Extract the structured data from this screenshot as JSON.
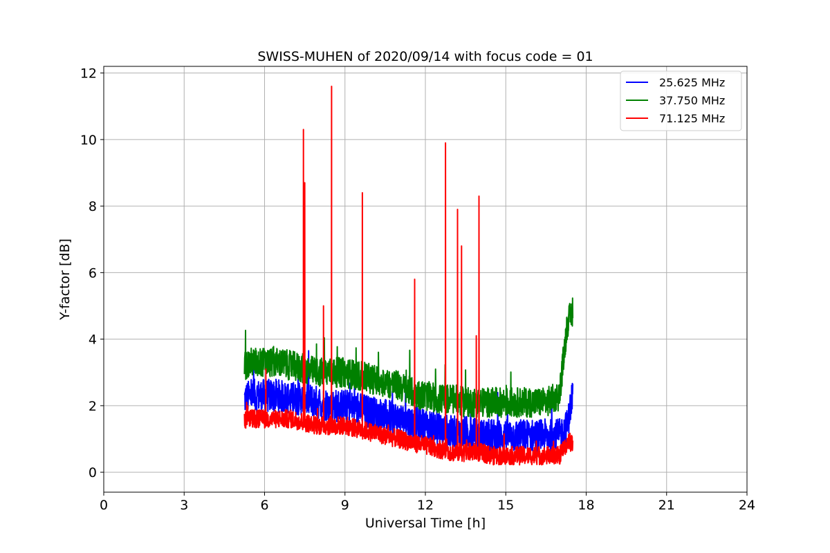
{
  "chart_data": {
    "type": "line",
    "title": "SWISS-MUHEN of 2020/09/14 with focus code = 01",
    "xlabel": "Universal Time [h]",
    "ylabel": "Y-factor [dB]",
    "xlim": [
      0,
      24
    ],
    "ylim": [
      -0.6,
      12.2
    ],
    "xticks": [
      0,
      3,
      6,
      9,
      12,
      15,
      18,
      21,
      24
    ],
    "yticks": [
      0,
      2,
      4,
      6,
      8,
      10,
      12
    ],
    "grid": true,
    "legend_position": "top-right",
    "series": [
      {
        "name": "  25.625 MHz",
        "color": "#0000ff",
        "x": [
          5.25,
          5.5,
          6.0,
          6.5,
          7.0,
          7.5,
          8.0,
          8.5,
          9.0,
          9.5,
          10.0,
          10.5,
          11.0,
          11.5,
          12.0,
          12.5,
          13.0,
          13.5,
          14.0,
          14.5,
          15.0,
          15.5,
          16.0,
          16.5,
          17.0,
          17.3,
          17.5
        ],
        "y": [
          2.2,
          2.3,
          2.3,
          2.3,
          2.2,
          2.2,
          2.1,
          2.0,
          2.0,
          1.9,
          1.8,
          1.7,
          1.6,
          1.5,
          1.4,
          1.3,
          1.2,
          1.2,
          1.1,
          1.1,
          1.1,
          1.1,
          1.1,
          1.1,
          1.1,
          1.4,
          2.4
        ]
      },
      {
        "name": "  37.750 MHz",
        "color": "#008000",
        "x": [
          5.25,
          5.5,
          6.0,
          6.5,
          7.0,
          7.5,
          8.0,
          8.5,
          9.0,
          9.5,
          10.0,
          10.5,
          11.0,
          11.5,
          12.0,
          12.5,
          13.0,
          13.5,
          14.0,
          14.5,
          15.0,
          15.5,
          16.0,
          16.5,
          17.0,
          17.3,
          17.5
        ],
        "y": [
          3.2,
          3.3,
          3.3,
          3.3,
          3.2,
          3.1,
          3.0,
          3.0,
          3.0,
          2.9,
          2.8,
          2.7,
          2.6,
          2.4,
          2.3,
          2.2,
          2.2,
          2.1,
          2.1,
          2.1,
          2.1,
          2.1,
          2.1,
          2.1,
          2.3,
          4.5,
          4.8
        ]
      },
      {
        "name": "  71.125 MHz",
        "color": "#ff0000",
        "x": [
          5.25,
          5.5,
          6.0,
          6.5,
          7.0,
          7.5,
          8.0,
          8.5,
          9.0,
          9.5,
          10.0,
          10.5,
          11.0,
          11.5,
          12.0,
          12.5,
          13.0,
          13.5,
          14.0,
          14.5,
          15.0,
          15.5,
          16.0,
          16.5,
          17.0,
          17.3,
          17.5
        ],
        "y": [
          1.6,
          1.6,
          1.6,
          1.6,
          1.6,
          1.5,
          1.4,
          1.4,
          1.4,
          1.3,
          1.2,
          1.1,
          1.0,
          0.9,
          0.8,
          0.7,
          0.6,
          0.6,
          0.6,
          0.5,
          0.5,
          0.5,
          0.5,
          0.5,
          0.5,
          0.9,
          0.9
        ],
        "spikes": [
          {
            "x": 6.05,
            "y": 3.1
          },
          {
            "x": 7.45,
            "y": 10.3
          },
          {
            "x": 7.5,
            "y": 8.7
          },
          {
            "x": 8.2,
            "y": 5.0
          },
          {
            "x": 8.5,
            "y": 11.6
          },
          {
            "x": 9.65,
            "y": 8.4
          },
          {
            "x": 11.6,
            "y": 5.8
          },
          {
            "x": 12.75,
            "y": 9.9
          },
          {
            "x": 13.2,
            "y": 7.9
          },
          {
            "x": 13.35,
            "y": 6.8
          },
          {
            "x": 13.9,
            "y": 4.1
          },
          {
            "x": 14.0,
            "y": 8.3
          }
        ]
      }
    ]
  }
}
